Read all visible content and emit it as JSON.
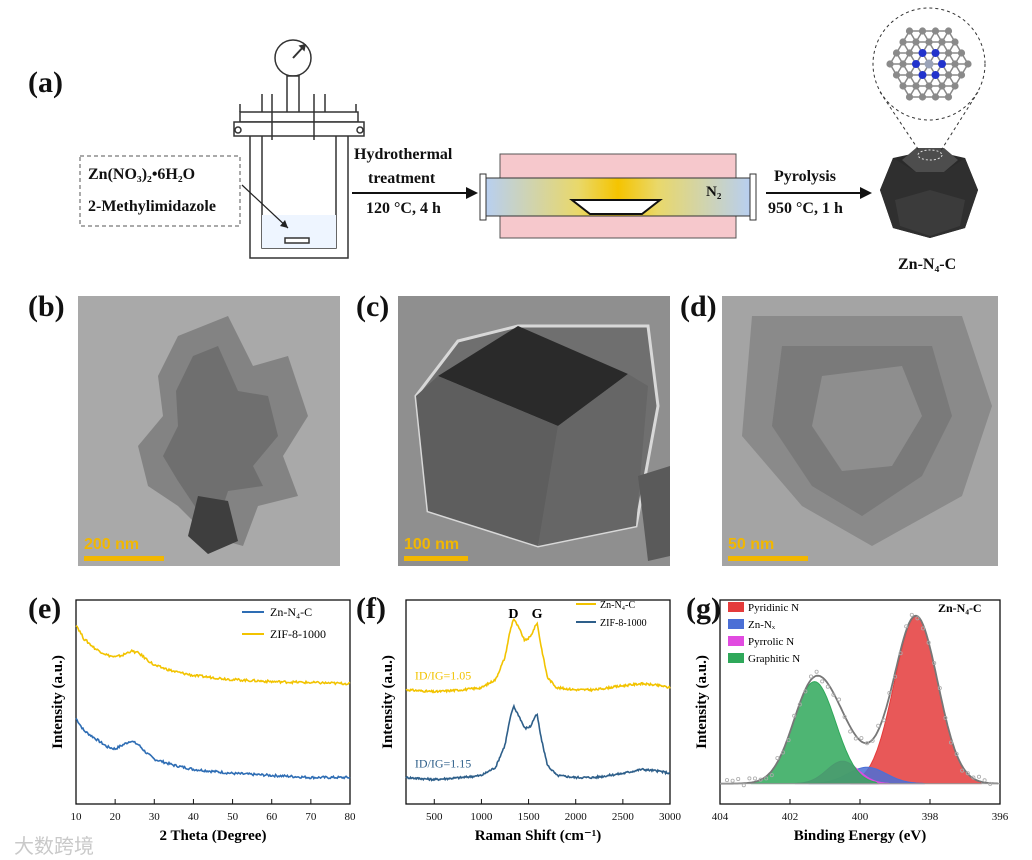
{
  "panel_labels": {
    "a": "(a)",
    "b": "(b)",
    "c": "(c)",
    "d": "(d)",
    "e": "(e)",
    "f": "(f)",
    "g": "(g)"
  },
  "scheme": {
    "precursor_1": "Zn(NO₃)₂•6H₂O",
    "precursor_2": "2-Methylimidazole",
    "step1_line1": "Hydrothermal",
    "step1_line2": "treatment",
    "step1_cond": "120 °C, 4 h",
    "step2_label": "Pyrolysis",
    "step2_cond": "950 °C, 1 h",
    "gas": "N₂",
    "product": "Zn-N₄-C"
  },
  "tem": {
    "b": {
      "scale_label": "200 nm"
    },
    "c": {
      "scale_label": "100 nm"
    },
    "d": {
      "scale_label": "50 nm"
    }
  },
  "chart_data": [
    {
      "id": "e",
      "type": "line",
      "xlabel": "2 Theta (Degree)",
      "ylabel": "Intensity (a.u.)",
      "xlim": [
        10,
        80
      ],
      "xticks": [
        10,
        20,
        30,
        40,
        50,
        60,
        70,
        80
      ],
      "legend_position": "top-right",
      "series": [
        {
          "name": "Zn-N₄-C",
          "color": "#2e6db4",
          "x": [
            10,
            12,
            15,
            18,
            20,
            22,
            24,
            26,
            28,
            30,
            35,
            40,
            45,
            50,
            60,
            70,
            80
          ],
          "y": [
            0.42,
            0.36,
            0.32,
            0.28,
            0.27,
            0.29,
            0.31,
            0.29,
            0.25,
            0.22,
            0.19,
            0.17,
            0.16,
            0.15,
            0.14,
            0.13,
            0.13
          ]
        },
        {
          "name": "ZIF-8-1000",
          "color": "#f2c300",
          "x": [
            10,
            12,
            15,
            18,
            20,
            22,
            24,
            26,
            28,
            30,
            35,
            40,
            45,
            50,
            60,
            70,
            80
          ],
          "y": [
            0.88,
            0.81,
            0.76,
            0.73,
            0.72,
            0.73,
            0.75,
            0.74,
            0.71,
            0.68,
            0.65,
            0.63,
            0.62,
            0.61,
            0.6,
            0.595,
            0.59
          ]
        }
      ]
    },
    {
      "id": "f",
      "type": "line",
      "xlabel": "Raman Shift (cm⁻¹)",
      "ylabel": "Intensity (a.u.)",
      "xlim": [
        200,
        3000
      ],
      "xticks": [
        500,
        1000,
        1500,
        2000,
        2500,
        3000
      ],
      "legend_position": "top-right",
      "peak_labels": [
        {
          "text": "D",
          "x": 1340
        },
        {
          "text": "G",
          "x": 1590
        }
      ],
      "series": [
        {
          "name": "Zn-N₄-C",
          "color": "#f2c300",
          "annotation": "ID/IG=1.05",
          "x": [
            200,
            500,
            800,
            1000,
            1150,
            1250,
            1300,
            1340,
            1400,
            1460,
            1520,
            1560,
            1590,
            1630,
            1700,
            1800,
            2000,
            2200,
            2500,
            2700,
            2900,
            3000
          ],
          "y": [
            0.56,
            0.55,
            0.56,
            0.57,
            0.61,
            0.72,
            0.84,
            0.91,
            0.86,
            0.8,
            0.82,
            0.86,
            0.89,
            0.78,
            0.62,
            0.57,
            0.56,
            0.56,
            0.58,
            0.59,
            0.58,
            0.57
          ]
        },
        {
          "name": "ZIF-8-1000",
          "color": "#2e5f8a",
          "annotation": "ID/IG=1.15",
          "x": [
            200,
            500,
            800,
            1000,
            1150,
            1250,
            1300,
            1340,
            1400,
            1460,
            1520,
            1560,
            1590,
            1630,
            1700,
            1800,
            2000,
            2200,
            2500,
            2700,
            2900,
            3000
          ],
          "y": [
            0.13,
            0.12,
            0.13,
            0.14,
            0.18,
            0.29,
            0.41,
            0.48,
            0.43,
            0.37,
            0.38,
            0.42,
            0.44,
            0.33,
            0.19,
            0.14,
            0.13,
            0.13,
            0.15,
            0.17,
            0.16,
            0.15
          ]
        }
      ]
    },
    {
      "id": "g",
      "type": "area",
      "xlabel": "Binding Energy (eV)",
      "ylabel": "Intensity (a.u.)",
      "xlim": [
        404,
        396
      ],
      "xticks": [
        404,
        402,
        400,
        398,
        396
      ],
      "legend_position": "top-left",
      "sample_label": "Zn-N₄-C",
      "components": [
        {
          "name": "Pyridinic N",
          "color": "#e43b3b",
          "center": 398.4,
          "height": 0.82,
          "sigma": 0.62
        },
        {
          "name": "Zn-Nₓ",
          "color": "#4b6fd6",
          "center": 399.8,
          "height": 0.08,
          "sigma": 0.55
        },
        {
          "name": "Pyrrolic N",
          "color": "#e14be0",
          "center": 400.5,
          "height": 0.11,
          "sigma": 0.45
        },
        {
          "name": "Graphitic N",
          "color": "#2fa85a",
          "center": 401.3,
          "height": 0.5,
          "sigma": 0.6
        }
      ],
      "background": 0.1
    }
  ],
  "watermark": "大数跨境"
}
